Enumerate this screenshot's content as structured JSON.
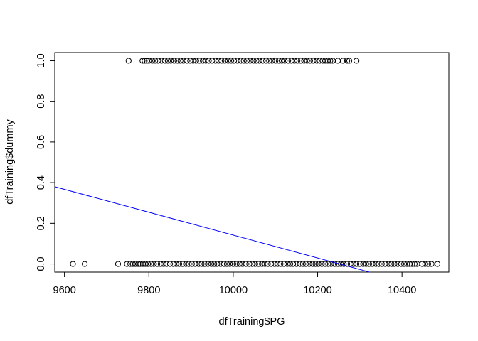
{
  "chart_data": {
    "type": "scatter",
    "title": "",
    "xlabel": "dfTraining$PG",
    "ylabel": "dfTraining$dummy",
    "xlim": [
      9577,
      10511
    ],
    "ylim": [
      -0.04,
      1.04
    ],
    "xticks": [
      "9600",
      "9800",
      "10000",
      "10200",
      "10400"
    ],
    "xtick_values": [
      9600,
      9800,
      10000,
      10200,
      10400
    ],
    "yticks": [
      "0.0",
      "0.2",
      "0.4",
      "0.6",
      "0.8",
      "1.0"
    ],
    "ytick_values": [
      0.0,
      0.2,
      0.4,
      0.6,
      0.8,
      1.0
    ],
    "grid": false,
    "legend": "none",
    "point_style": "open-circle",
    "series": [
      {
        "y": 1,
        "x": [
          9752,
          9785,
          9790,
          9795,
          9800,
          9808,
          9815,
          9822,
          9830,
          9838,
          9845,
          9852,
          9860,
          9868,
          9875,
          9882,
          9890,
          9898,
          9905,
          9912,
          9920,
          9928,
          9935,
          9942,
          9950,
          9958,
          9965,
          9972,
          9980,
          9988,
          9995,
          10002,
          10010,
          10018,
          10025,
          10032,
          10040,
          10048,
          10055,
          10062,
          10070,
          10078,
          10085,
          10092,
          10100,
          10108,
          10115,
          10122,
          10130,
          10138,
          10145,
          10152,
          10160,
          10168,
          10175,
          10182,
          10190,
          10198,
          10205,
          10212,
          10218,
          10224,
          10230,
          10236,
          10248,
          10260,
          10270,
          10275,
          10292
        ]
      },
      {
        "y": 0,
        "x": [
          9620,
          9648,
          9727,
          9748,
          9756,
          9762,
          9768,
          9775,
          9780,
          9786,
          9792,
          9798,
          9805,
          9812,
          9820,
          9828,
          9835,
          9842,
          9850,
          9858,
          9865,
          9872,
          9880,
          9888,
          9895,
          9902,
          9910,
          9918,
          9925,
          9932,
          9940,
          9948,
          9955,
          9962,
          9970,
          9978,
          9985,
          9992,
          10000,
          10008,
          10015,
          10022,
          10030,
          10038,
          10045,
          10052,
          10060,
          10068,
          10075,
          10082,
          10090,
          10098,
          10105,
          10112,
          10120,
          10128,
          10135,
          10142,
          10150,
          10158,
          10165,
          10172,
          10180,
          10188,
          10195,
          10202,
          10210,
          10218,
          10225,
          10232,
          10240,
          10248,
          10255,
          10262,
          10270,
          10278,
          10285,
          10292,
          10300,
          10308,
          10315,
          10322,
          10330,
          10338,
          10345,
          10352,
          10360,
          10368,
          10375,
          10382,
          10390,
          10398,
          10405,
          10412,
          10418,
          10424,
          10430,
          10436,
          10448,
          10455,
          10462,
          10470,
          10484
        ]
      }
    ],
    "line": {
      "color": "#0000ff",
      "points": [
        [
          9577,
          0.38
        ],
        [
          10323,
          -0.04
        ]
      ]
    }
  }
}
